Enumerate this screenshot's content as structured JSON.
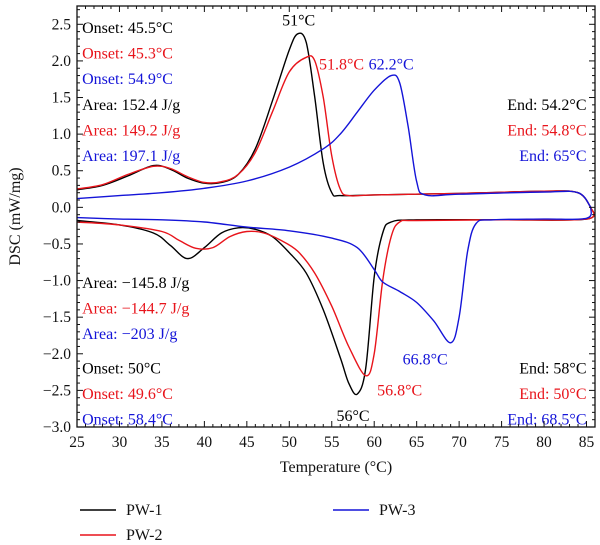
{
  "chart_data": {
    "type": "line",
    "xlabel": "Temperature (°C)",
    "ylabel": "DSC (mW/mg)",
    "xlim": [
      25,
      86
    ],
    "ylim": [
      -3.0,
      2.75
    ],
    "xticks": [
      "25",
      "30",
      "35",
      "40",
      "45",
      "50",
      "55",
      "60",
      "65",
      "70",
      "75",
      "80",
      "85"
    ],
    "yticks": [
      "2.5",
      "2.0",
      "1.5",
      "1.0",
      "0.5",
      "0.0",
      "−0.5",
      "−1.0",
      "−1.5",
      "−2.0",
      "−2.5",
      "−3.0"
    ],
    "grid": false,
    "legend_position": "bottom",
    "series": [
      {
        "name": "PW-1",
        "color": "#000000",
        "heating": [
          [
            25,
            0.24
          ],
          [
            28,
            0.3
          ],
          [
            31,
            0.43
          ],
          [
            34,
            0.57
          ],
          [
            36,
            0.52
          ],
          [
            38,
            0.4
          ],
          [
            40,
            0.33
          ],
          [
            42,
            0.34
          ],
          [
            44,
            0.45
          ],
          [
            46,
            0.8
          ],
          [
            48,
            1.45
          ],
          [
            50,
            2.15
          ],
          [
            51,
            2.37
          ],
          [
            52,
            2.25
          ],
          [
            53,
            1.5
          ],
          [
            54,
            0.6
          ],
          [
            55,
            0.2
          ],
          [
            56,
            0.16
          ],
          [
            60,
            0.17
          ],
          [
            70,
            0.19
          ],
          [
            80,
            0.22
          ],
          [
            84,
            0.2
          ],
          [
            85.5,
            0.0
          ]
        ],
        "cooling": [
          [
            25,
            -0.18
          ],
          [
            30,
            -0.24
          ],
          [
            34,
            -0.35
          ],
          [
            36,
            -0.52
          ],
          [
            38,
            -0.7
          ],
          [
            40,
            -0.55
          ],
          [
            42,
            -0.35
          ],
          [
            44,
            -0.28
          ],
          [
            46,
            -0.3
          ],
          [
            48,
            -0.4
          ],
          [
            50,
            -0.62
          ],
          [
            52,
            -0.9
          ],
          [
            54,
            -1.4
          ],
          [
            56,
            -2.05
          ],
          [
            57,
            -2.4
          ],
          [
            58,
            -2.55
          ],
          [
            59,
            -2.2
          ],
          [
            60,
            -0.95
          ],
          [
            61,
            -0.35
          ],
          [
            62,
            -0.2
          ],
          [
            65,
            -0.17
          ],
          [
            75,
            -0.17
          ],
          [
            85,
            -0.16
          ],
          [
            85.5,
            0.0
          ]
        ]
      },
      {
        "name": "PW-2",
        "color": "#e8141b",
        "heating": [
          [
            25,
            0.25
          ],
          [
            28,
            0.31
          ],
          [
            31,
            0.45
          ],
          [
            34,
            0.56
          ],
          [
            36,
            0.53
          ],
          [
            38,
            0.42
          ],
          [
            40,
            0.34
          ],
          [
            42,
            0.35
          ],
          [
            44,
            0.45
          ],
          [
            46,
            0.75
          ],
          [
            48,
            1.3
          ],
          [
            50,
            1.85
          ],
          [
            52,
            2.05
          ],
          [
            53,
            2.0
          ],
          [
            54,
            1.5
          ],
          [
            55,
            0.7
          ],
          [
            56,
            0.25
          ],
          [
            57,
            0.16
          ],
          [
            60,
            0.17
          ],
          [
            70,
            0.19
          ],
          [
            80,
            0.22
          ],
          [
            84,
            0.2
          ],
          [
            85.5,
            0.0
          ]
        ],
        "cooling": [
          [
            25,
            -0.2
          ],
          [
            30,
            -0.24
          ],
          [
            35,
            -0.33
          ],
          [
            37,
            -0.45
          ],
          [
            39,
            -0.56
          ],
          [
            41,
            -0.55
          ],
          [
            43,
            -0.4
          ],
          [
            45,
            -0.33
          ],
          [
            47,
            -0.35
          ],
          [
            49,
            -0.45
          ],
          [
            51,
            -0.6
          ],
          [
            53,
            -0.9
          ],
          [
            55,
            -1.35
          ],
          [
            57,
            -1.9
          ],
          [
            59,
            -2.3
          ],
          [
            60,
            -2.0
          ],
          [
            61,
            -1.0
          ],
          [
            62,
            -0.4
          ],
          [
            63,
            -0.2
          ],
          [
            65,
            -0.18
          ],
          [
            75,
            -0.17
          ],
          [
            85,
            -0.16
          ],
          [
            85.5,
            0.0
          ]
        ]
      },
      {
        "name": "PW-3",
        "color": "#1414d8",
        "heating": [
          [
            25,
            0.12
          ],
          [
            30,
            0.16
          ],
          [
            35,
            0.2
          ],
          [
            40,
            0.26
          ],
          [
            45,
            0.36
          ],
          [
            50,
            0.55
          ],
          [
            54,
            0.8
          ],
          [
            56,
            1.0
          ],
          [
            58,
            1.3
          ],
          [
            60,
            1.6
          ],
          [
            62,
            1.8
          ],
          [
            63,
            1.7
          ],
          [
            64,
            1.1
          ],
          [
            65,
            0.35
          ],
          [
            66,
            0.17
          ],
          [
            70,
            0.18
          ],
          [
            80,
            0.21
          ],
          [
            84,
            0.2
          ],
          [
            85.5,
            0.0
          ]
        ],
        "cooling": [
          [
            25,
            -0.14
          ],
          [
            30,
            -0.16
          ],
          [
            35,
            -0.17
          ],
          [
            40,
            -0.2
          ],
          [
            45,
            -0.27
          ],
          [
            50,
            -0.32
          ],
          [
            55,
            -0.42
          ],
          [
            58,
            -0.55
          ],
          [
            60,
            -0.85
          ],
          [
            61,
            -1.02
          ],
          [
            63,
            -1.15
          ],
          [
            65,
            -1.3
          ],
          [
            67,
            -1.55
          ],
          [
            69,
            -1.85
          ],
          [
            70,
            -1.5
          ],
          [
            71,
            -0.6
          ],
          [
            72,
            -0.22
          ],
          [
            74,
            -0.17
          ],
          [
            80,
            -0.16
          ],
          [
            85,
            -0.15
          ],
          [
            85.5,
            0.0
          ]
        ]
      }
    ],
    "annotations": [
      {
        "text": "Onset: 45.5°C",
        "color": "#000000",
        "x": 25.6,
        "y": 2.45,
        "anchor": "start"
      },
      {
        "text": "Onset: 45.3°C",
        "color": "#e8141b",
        "x": 25.6,
        "y": 2.1,
        "anchor": "start"
      },
      {
        "text": "Onset: 54.9°C",
        "color": "#1414d8",
        "x": 25.6,
        "y": 1.75,
        "anchor": "start"
      },
      {
        "text": "Area: 152.4 J/g",
        "color": "#000000",
        "x": 25.6,
        "y": 1.4,
        "anchor": "start"
      },
      {
        "text": "Area: 149.2 J/g",
        "color": "#e8141b",
        "x": 25.6,
        "y": 1.05,
        "anchor": "start"
      },
      {
        "text": "Area: 197.1 J/g",
        "color": "#1414d8",
        "x": 25.6,
        "y": 0.7,
        "anchor": "start"
      },
      {
        "text": "51°C",
        "color": "#000000",
        "x": 51.1,
        "y": 2.55,
        "anchor": "middle"
      },
      {
        "text": "51.8°C",
        "color": "#e8141b",
        "x": 53.5,
        "y": 1.95,
        "anchor": "start"
      },
      {
        "text": "62.2°C",
        "color": "#1414d8",
        "x": 62.0,
        "y": 1.95,
        "anchor": "middle"
      },
      {
        "text": "End: 54.2°C",
        "color": "#000000",
        "x": 85.0,
        "y": 1.4,
        "anchor": "end"
      },
      {
        "text": "End: 54.8°C",
        "color": "#e8141b",
        "x": 85.0,
        "y": 1.05,
        "anchor": "end"
      },
      {
        "text": "End: 65°C",
        "color": "#1414d8",
        "x": 85.0,
        "y": 0.7,
        "anchor": "end"
      },
      {
        "text": "Area: −145.8 J/g",
        "color": "#000000",
        "x": 25.6,
        "y": -1.03,
        "anchor": "start"
      },
      {
        "text": "Area: −144.7 J/g",
        "color": "#e8141b",
        "x": 25.6,
        "y": -1.38,
        "anchor": "start"
      },
      {
        "text": "Area: −203 J/g",
        "color": "#1414d8",
        "x": 25.6,
        "y": -1.73,
        "anchor": "start"
      },
      {
        "text": "Onset: 50°C",
        "color": "#000000",
        "x": 25.6,
        "y": -2.2,
        "anchor": "start"
      },
      {
        "text": "Onset: 49.6°C",
        "color": "#e8141b",
        "x": 25.6,
        "y": -2.55,
        "anchor": "start"
      },
      {
        "text": "Onset: 58.4°C",
        "color": "#1414d8",
        "x": 25.6,
        "y": -2.9,
        "anchor": "start"
      },
      {
        "text": "56°C",
        "color": "#000000",
        "x": 57.5,
        "y": -2.85,
        "anchor": "middle"
      },
      {
        "text": "56.8°C",
        "color": "#e8141b",
        "x": 63.0,
        "y": -2.5,
        "anchor": "middle"
      },
      {
        "text": "66.8°C",
        "color": "#1414d8",
        "x": 66.0,
        "y": -2.08,
        "anchor": "middle"
      },
      {
        "text": "End: 58°C",
        "color": "#000000",
        "x": 85.0,
        "y": -2.2,
        "anchor": "end"
      },
      {
        "text": "End: 50°C",
        "color": "#e8141b",
        "x": 85.0,
        "y": -2.55,
        "anchor": "end"
      },
      {
        "text": "End: 68.5°C",
        "color": "#1414d8",
        "x": 85.0,
        "y": -2.9,
        "anchor": "end"
      }
    ]
  }
}
